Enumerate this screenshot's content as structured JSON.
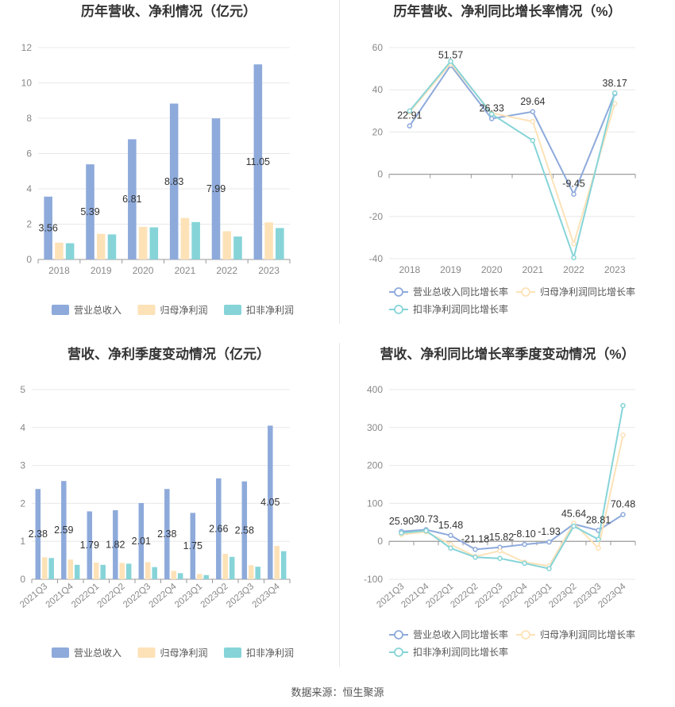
{
  "colors": {
    "revenue": "#8eaadb",
    "net_profit": "#fde2b8",
    "deducted_profit": "#86d4d8",
    "grid": "#e8e8e8",
    "axis": "#999999",
    "tick_text": "#888888",
    "label_text": "#333333",
    "title_text": "#333333"
  },
  "source": "数据来源：恒生聚源",
  "chart_data": [
    {
      "type": "bar",
      "title": "历年营收、净利情况（亿元）",
      "categories": [
        "2018",
        "2019",
        "2020",
        "2021",
        "2022",
        "2023"
      ],
      "ylim": [
        0,
        12
      ],
      "yticks": [
        0,
        2,
        4,
        6,
        8,
        10,
        12
      ],
      "series": [
        {
          "name": "营业总收入",
          "color": "#8eaadb",
          "values": [
            3.56,
            5.39,
            6.81,
            8.83,
            7.99,
            11.05
          ],
          "labels": [
            "3.56",
            "5.39",
            "6.81",
            "8.83",
            "7.99",
            "11.05"
          ]
        },
        {
          "name": "归母净利润",
          "color": "#fde2b8",
          "values": [
            0.95,
            1.45,
            1.85,
            2.35,
            1.6,
            2.1
          ]
        },
        {
          "name": "扣非净利润",
          "color": "#86d4d8",
          "values": [
            0.92,
            1.42,
            1.82,
            2.12,
            1.3,
            1.78
          ]
        }
      ],
      "legend": "bottom",
      "grid": true
    },
    {
      "type": "line",
      "title": "历年营收、净利同比增长率情况（%）",
      "categories": [
        "2018",
        "2019",
        "2020",
        "2021",
        "2022",
        "2023"
      ],
      "ylim": [
        -40,
        60
      ],
      "yticks": [
        -40,
        -20,
        0,
        20,
        40,
        60
      ],
      "series": [
        {
          "name": "营业总收入同比增长率",
          "color": "#8eaadb",
          "values": [
            22.91,
            51.57,
            26.33,
            29.64,
            -9.45,
            38.17
          ],
          "labels": [
            "22.91",
            "51.57",
            "26.33",
            "29.64",
            "-9.45",
            "38.17"
          ]
        },
        {
          "name": "归母净利润同比增长率",
          "color": "#fde2b8",
          "values": [
            29.5,
            52.5,
            29.0,
            25.0,
            -33.0,
            33.5
          ]
        },
        {
          "name": "扣非净利润同比增长率",
          "color": "#86d4d8",
          "values": [
            30.0,
            53.5,
            28.5,
            16.0,
            -39.5,
            38.5
          ]
        }
      ],
      "legend": "bottom",
      "grid": true
    },
    {
      "type": "bar",
      "title": "营收、净利季度变动情况（亿元）",
      "categories": [
        "2021Q3",
        "2021Q4",
        "2022Q1",
        "2022Q2",
        "2022Q3",
        "2022Q4",
        "2023Q1",
        "2023Q2",
        "2023Q3",
        "2023Q4"
      ],
      "ylim": [
        0,
        5
      ],
      "yticks": [
        0,
        1,
        2,
        3,
        4,
        5
      ],
      "series": [
        {
          "name": "营业总收入",
          "color": "#8eaadb",
          "values": [
            2.38,
            2.59,
            1.79,
            1.82,
            2.01,
            2.38,
            1.75,
            2.66,
            2.58,
            4.05
          ],
          "labels": [
            "2.38",
            "2.59",
            "1.79",
            "1.82",
            "2.01",
            "2.38",
            "1.75",
            "2.66",
            "2.58",
            "4.05"
          ]
        },
        {
          "name": "归母净利润",
          "color": "#fde2b8",
          "values": [
            0.58,
            0.52,
            0.44,
            0.43,
            0.45,
            0.22,
            0.14,
            0.67,
            0.37,
            0.88
          ]
        },
        {
          "name": "扣非净利润",
          "color": "#86d4d8",
          "values": [
            0.56,
            0.38,
            0.38,
            0.41,
            0.32,
            0.16,
            0.11,
            0.59,
            0.33,
            0.74
          ]
        }
      ],
      "legend": "bottom",
      "grid": true
    },
    {
      "type": "line",
      "title": "营收、净利同比增长率季度变动情况（%）",
      "categories": [
        "2021Q3",
        "2021Q4",
        "2022Q1",
        "2022Q2",
        "2022Q3",
        "2022Q4",
        "2023Q1",
        "2023Q2",
        "2023Q3",
        "2023Q4"
      ],
      "ylim": [
        -100,
        400
      ],
      "yticks": [
        -100,
        0,
        100,
        200,
        300,
        400
      ],
      "series": [
        {
          "name": "营业总收入同比增长率",
          "color": "#8eaadb",
          "values": [
            25.9,
            30.73,
            15.48,
            -21.18,
            -15.82,
            -8.1,
            -1.93,
            45.64,
            28.81,
            70.48
          ],
          "labels": [
            "25.90",
            "30.73",
            "15.48",
            "-21.18",
            "-15.82",
            "-8.10",
            "-1.93",
            "45.64",
            "28.81",
            "70.48"
          ]
        },
        {
          "name": "归母净利润同比增长率",
          "color": "#fde2b8",
          "values": [
            18,
            25,
            -8,
            -40,
            -25,
            -55,
            -65,
            48,
            -18,
            280
          ]
        },
        {
          "name": "扣非净利润同比增长率",
          "color": "#86d4d8",
          "values": [
            22,
            28,
            -18,
            -42,
            -45,
            -58,
            -72,
            40,
            5,
            358
          ]
        }
      ],
      "legend": "bottom",
      "grid": true
    }
  ]
}
